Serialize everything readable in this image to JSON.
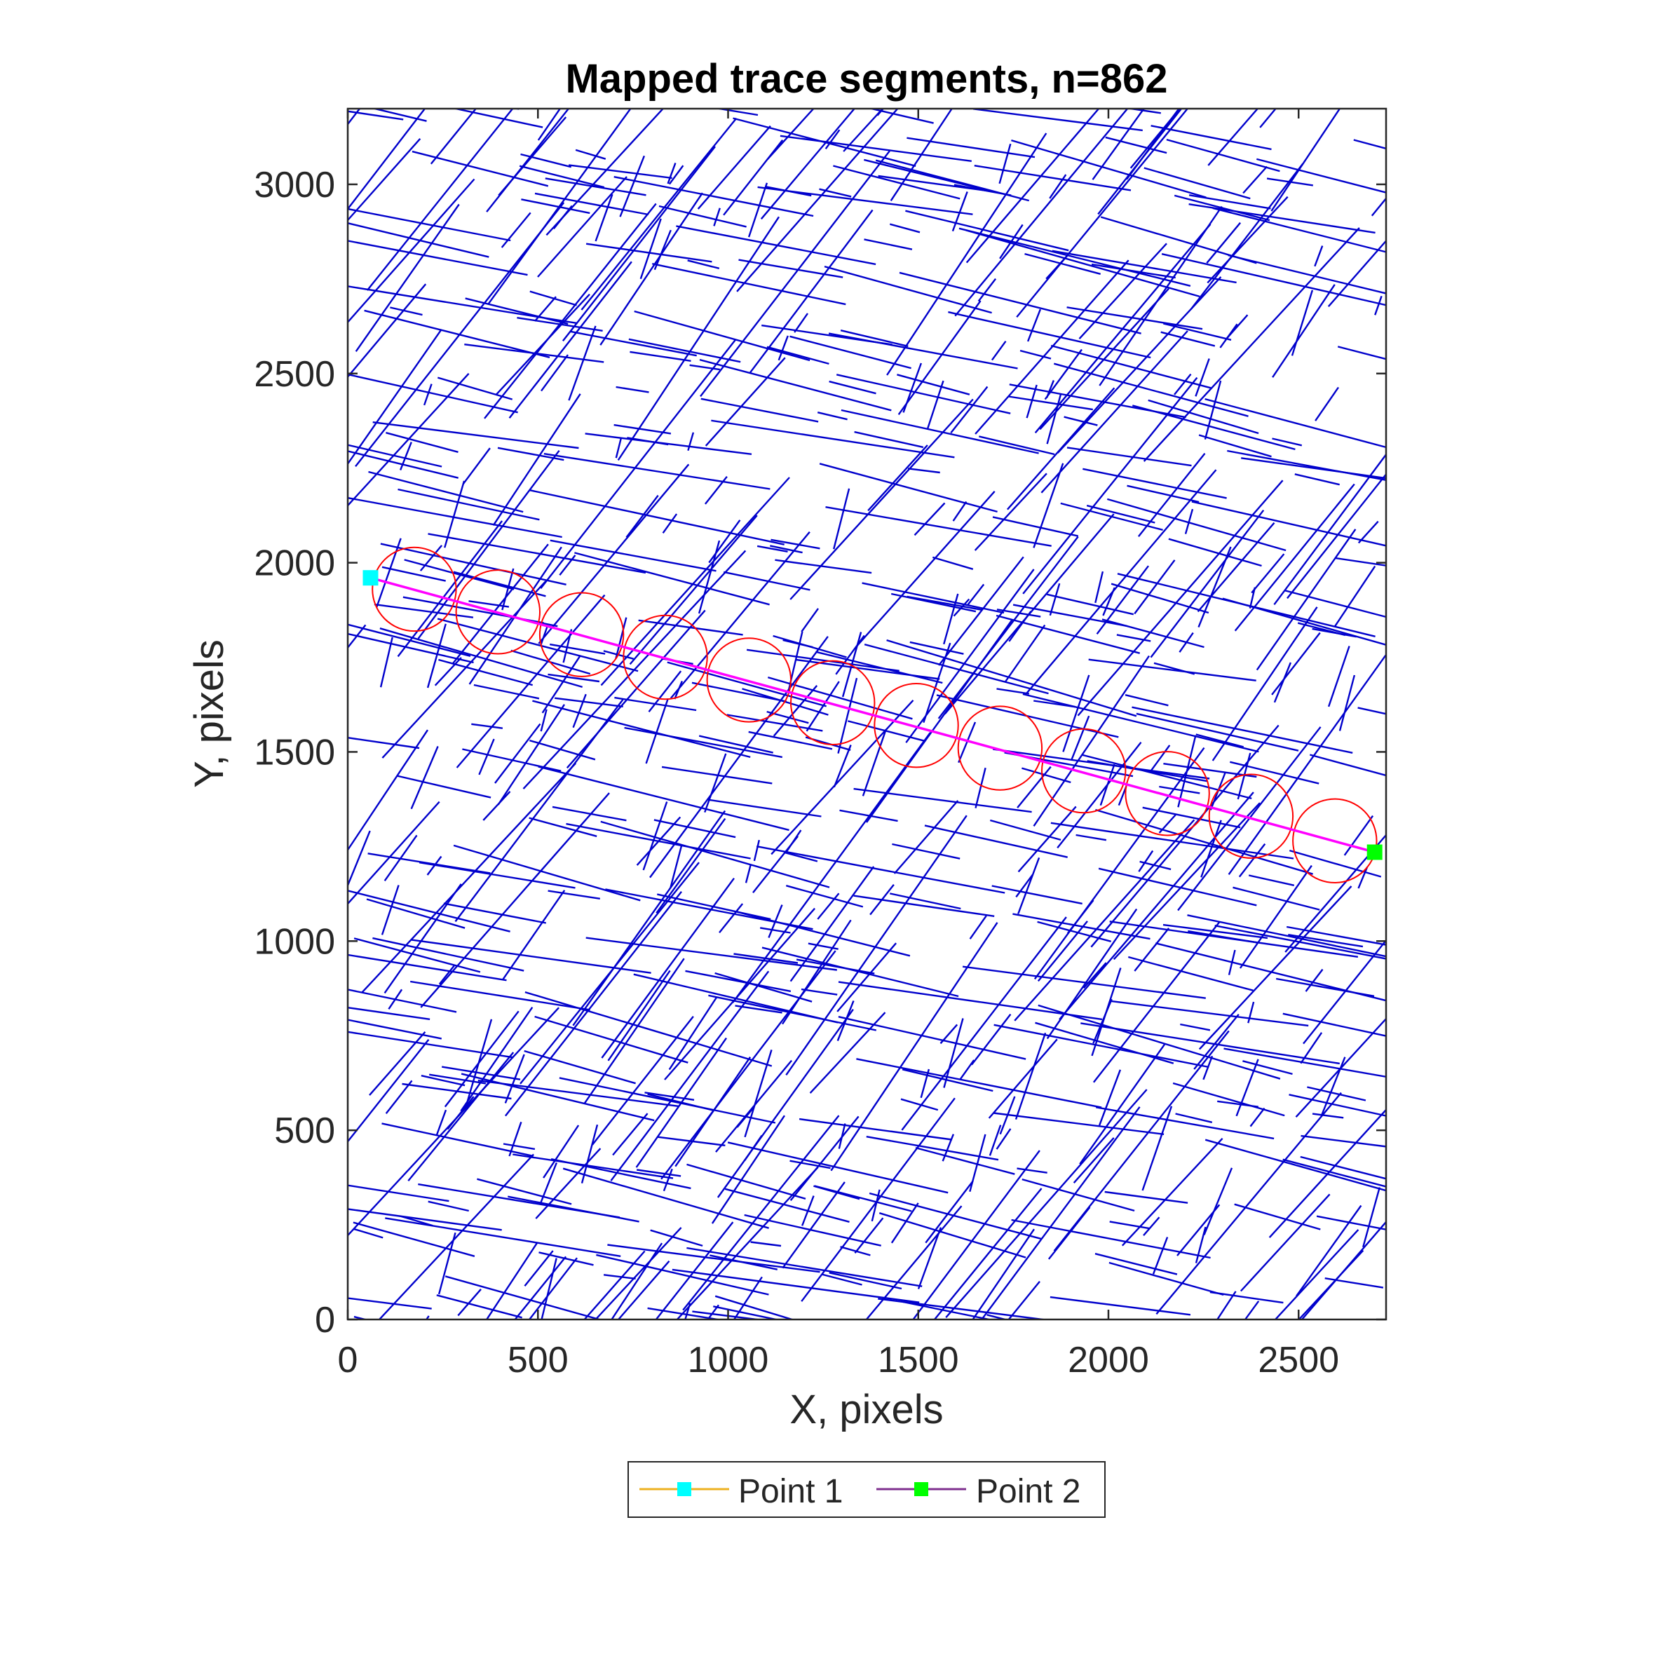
{
  "chart_data": {
    "type": "line",
    "title": "Mapped trace segments, n=862",
    "xlabel": "X, pixels",
    "ylabel": "Y, pixels",
    "xlim": [
      0,
      2730
    ],
    "ylim": [
      0,
      3200
    ],
    "xticks": [
      "0",
      "500",
      "1000",
      "1500",
      "2000",
      "2500"
    ],
    "yticks": [
      "0",
      "500",
      "1000",
      "1500",
      "2000",
      "2500",
      "3000"
    ],
    "grid": false,
    "legend_position": "bottom-outside",
    "legend": [
      {
        "label": "Point 1",
        "line_color": "#EDB120",
        "marker_color": "#00FFFF"
      },
      {
        "label": "Point 2",
        "line_color": "#7E2F8E",
        "marker_color": "#00FF00"
      }
    ],
    "colors": {
      "segments": "#0000CC",
      "scanline": "#FF00FF",
      "circles": "#FF0000",
      "point1": "#00FFFF",
      "point2": "#00FF00"
    },
    "points": {
      "point1": {
        "x": 60,
        "y": 1960
      },
      "point2": {
        "x": 2700,
        "y": 1235
      }
    },
    "scanline": {
      "x": [
        60,
        2700
      ],
      "y": [
        1960,
        1235
      ]
    },
    "circles": {
      "radius": 110,
      "centers": [
        {
          "x": 175,
          "y": 1930
        },
        {
          "x": 395,
          "y": 1870
        },
        {
          "x": 615,
          "y": 1810
        },
        {
          "x": 835,
          "y": 1750
        },
        {
          "x": 1055,
          "y": 1690
        },
        {
          "x": 1275,
          "y": 1630
        },
        {
          "x": 1495,
          "y": 1570
        },
        {
          "x": 1715,
          "y": 1510
        },
        {
          "x": 1935,
          "y": 1450
        },
        {
          "x": 2155,
          "y": 1390
        },
        {
          "x": 2375,
          "y": 1330
        },
        {
          "x": 2595,
          "y": 1265
        }
      ]
    },
    "segment_families": [
      {
        "x0": 0,
        "x1": 2730,
        "y0": -200,
        "y1": 3300,
        "angle_deg": -12,
        "len_min": 80,
        "len_max": 700,
        "count": 440
      },
      {
        "x0": 0,
        "x1": 2730,
        "y0": -200,
        "y1": 3300,
        "angle_deg": 52,
        "len_min": 60,
        "len_max": 900,
        "count": 300
      },
      {
        "x0": 0,
        "x1": 2730,
        "y0": -200,
        "y1": 3300,
        "angle_deg": 72,
        "len_min": 50,
        "len_max": 250,
        "count": 122
      }
    ]
  }
}
